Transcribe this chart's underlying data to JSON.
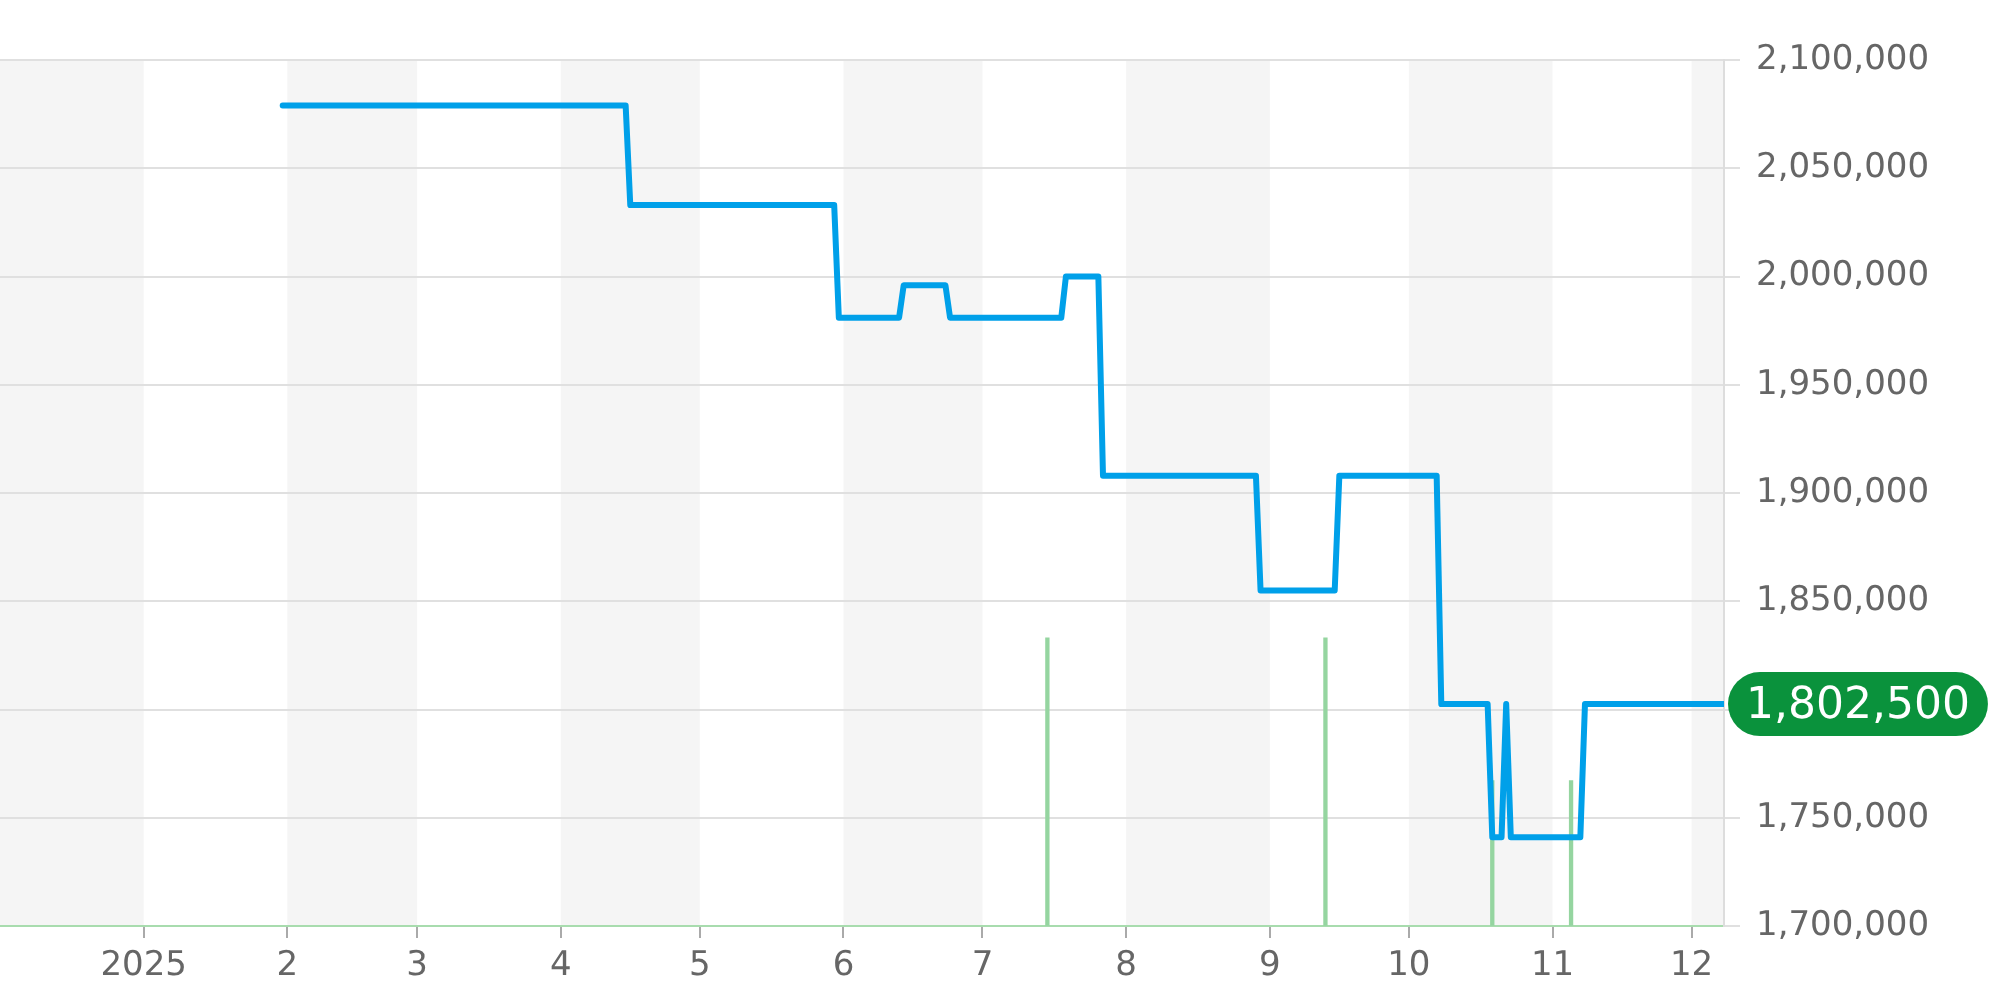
{
  "chart_data": {
    "type": "line",
    "xlim": [
      "2024-12-01",
      "2025-12-08"
    ],
    "xticks": [
      {
        "value": "2025-01-01",
        "label": "2025"
      },
      {
        "value": "2025-02-01",
        "label": "2"
      },
      {
        "value": "2025-03-01",
        "label": "3"
      },
      {
        "value": "2025-04-01",
        "label": "4"
      },
      {
        "value": "2025-05-01",
        "label": "5"
      },
      {
        "value": "2025-06-01",
        "label": "6"
      },
      {
        "value": "2025-07-01",
        "label": "7"
      },
      {
        "value": "2025-08-01",
        "label": "8"
      },
      {
        "value": "2025-09-01",
        "label": "9"
      },
      {
        "value": "2025-10-01",
        "label": "10"
      },
      {
        "value": "2025-11-01",
        "label": "11"
      },
      {
        "value": "2025-12-01",
        "label": "12"
      }
    ],
    "ylim": [
      1700000,
      2100000
    ],
    "yticks": [
      {
        "value": 1700000,
        "label": "1,700,000"
      },
      {
        "value": 1750000,
        "label": "1,750,000"
      },
      {
        "value": 1800000,
        "label": null
      },
      {
        "value": 1850000,
        "label": "1,850,000"
      },
      {
        "value": 1900000,
        "label": "1,900,000"
      },
      {
        "value": 1950000,
        "label": "1,950,000"
      },
      {
        "value": 2000000,
        "label": "2,000,000"
      },
      {
        "value": 2050000,
        "label": "2,050,000"
      },
      {
        "value": 2100000,
        "label": "2,100,000"
      }
    ],
    "grid": "y",
    "marker": "none",
    "line_style": "solid",
    "series": [
      {
        "color": "#00a0e9",
        "x": [
          "2025-01-31",
          "2025-04-15",
          "2025-04-16",
          "2025-05-30",
          "2025-05-31",
          "2025-06-13",
          "2025-06-14",
          "2025-06-23",
          "2025-06-24",
          "2025-07-18",
          "2025-07-19",
          "2025-07-26",
          "2025-07-27",
          "2025-08-29",
          "2025-08-30",
          "2025-09-15",
          "2025-09-16",
          "2025-10-07",
          "2025-10-08",
          "2025-10-18",
          "2025-10-19",
          "2025-10-21",
          "2025-10-22",
          "2025-10-23",
          "2025-11-07",
          "2025-11-08",
          "2025-12-08"
        ],
        "values": [
          2079000,
          2079000,
          2033000,
          2033000,
          1981000,
          1981000,
          1996000,
          1996000,
          1981000,
          1981000,
          2000000,
          2000000,
          1908000,
          1908000,
          1855000,
          1855000,
          1908000,
          1908000,
          1802500,
          1802500,
          1741000,
          1741000,
          1802500,
          1741000,
          1741000,
          1802500,
          1802500
        ]
      },
      {
        "type": "bar",
        "color": "#95d5a0",
        "x": [
          "2025-07-15",
          "2025-09-13",
          "2025-10-19",
          "2025-11-05"
        ],
        "values": [
          1833000,
          1833000,
          1767000,
          1767000
        ]
      }
    ],
    "bands": [
      {
        "axis": "x",
        "from": "2024-12-01",
        "to": "2025-01-01",
        "color": "#f5f5f5"
      },
      {
        "axis": "x",
        "from": "2025-02-01",
        "to": "2025-03-01",
        "color": "#f5f5f5"
      },
      {
        "axis": "x",
        "from": "2025-04-01",
        "to": "2025-05-01",
        "color": "#f5f5f5"
      },
      {
        "axis": "x",
        "from": "2025-06-01",
        "to": "2025-07-01",
        "color": "#f5f5f5"
      },
      {
        "axis": "x",
        "from": "2025-08-01",
        "to": "2025-09-01",
        "color": "#f5f5f5"
      },
      {
        "axis": "x",
        "from": "2025-10-01",
        "to": "2025-11-01",
        "color": "#f5f5f5"
      },
      {
        "axis": "x",
        "from": "2025-12-01",
        "to": "2025-12-08",
        "color": "#f5f5f5"
      }
    ],
    "annotations": [
      {
        "text": "1,802,500",
        "x": "2025-12-08",
        "y": 1802500
      }
    ]
  }
}
